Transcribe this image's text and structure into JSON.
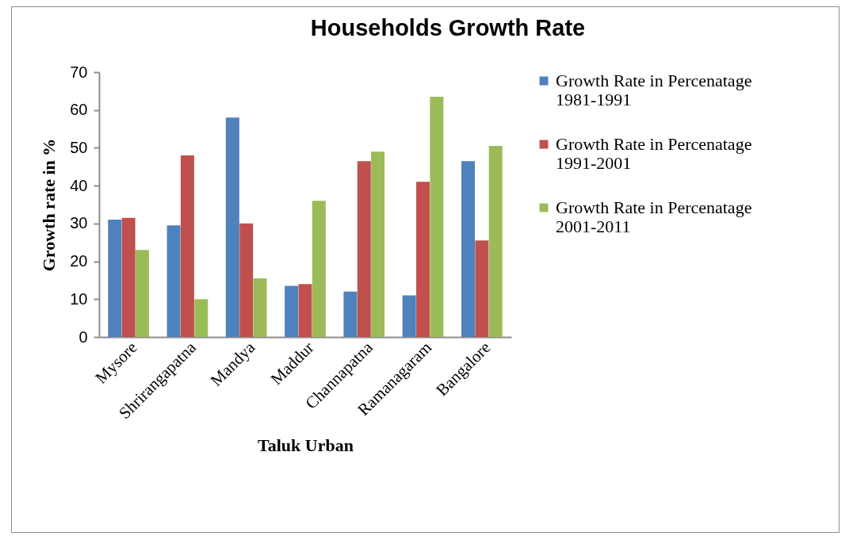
{
  "chart_data": {
    "type": "bar",
    "title": "Households Growth Rate",
    "xlabel": "Taluk Urban",
    "ylabel": "Growth rate in %",
    "categories": [
      "Mysore",
      "Shrirangapatna",
      "Mandya",
      "Maddur",
      "Channapatna",
      "Ramanagaram",
      "Bangalore"
    ],
    "series": [
      {
        "name": "Growth Rate in Percenatage 1981-1991",
        "color": "#4f81bd",
        "values": [
          31,
          29.5,
          58,
          13.5,
          12,
          11,
          46.5
        ]
      },
      {
        "name": "Growth Rate in Percenatage 1991-2001",
        "color": "#c0504d",
        "values": [
          31.5,
          48,
          30,
          14,
          46.5,
          41,
          25.5
        ]
      },
      {
        "name": "Growth Rate in Percenatage 2001-2011",
        "color": "#9bbb59",
        "values": [
          23,
          10,
          15.5,
          36,
          49,
          63.5,
          50.5
        ]
      }
    ],
    "ylim": [
      0,
      70
    ],
    "yticks": [
      0,
      10,
      20,
      30,
      40,
      50,
      60,
      70
    ],
    "grid": false,
    "legend": "right"
  }
}
